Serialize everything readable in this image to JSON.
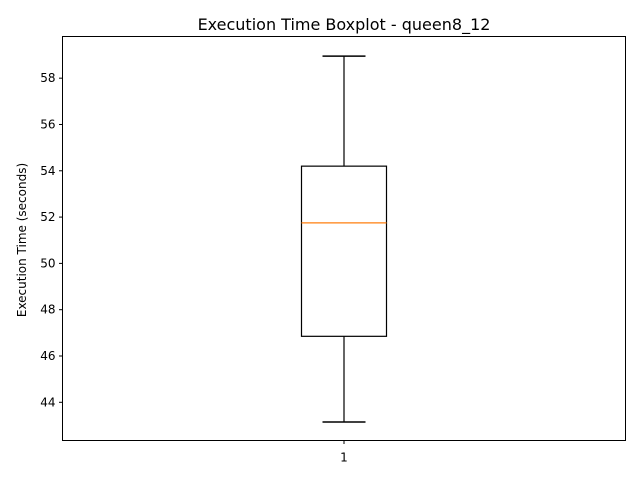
{
  "chart_data": {
    "type": "boxplot",
    "title": "Execution Time Boxplot - queen8_12",
    "xlabel": "",
    "ylabel": "Execution Time (seconds)",
    "categories": [
      "1"
    ],
    "ylim": [
      42.35,
      59.8
    ],
    "yticks": [
      44,
      46,
      48,
      50,
      52,
      54,
      56,
      58
    ],
    "boxes": [
      {
        "category": "1",
        "whisker_low": 43.15,
        "q1": 46.85,
        "median": 51.75,
        "q3": 54.2,
        "whisker_high": 58.95
      }
    ],
    "grid": false,
    "colors": {
      "box": "#000000",
      "median": "#ff7f0e",
      "axes": "#000000"
    }
  }
}
